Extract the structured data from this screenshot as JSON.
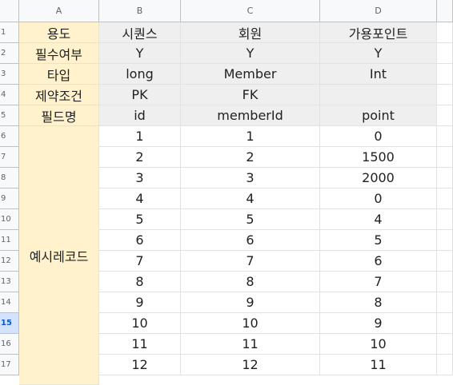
{
  "sheet": {
    "columns": [
      "A",
      "B",
      "C",
      "D"
    ],
    "rows": [
      "1",
      "2",
      "3",
      "4",
      "5",
      "6",
      "7",
      "8",
      "9",
      "10",
      "11",
      "12",
      "13",
      "14",
      "15",
      "16",
      "17"
    ],
    "active_row": "15",
    "header_rows": [
      {
        "label": "용도",
        "values": [
          "시퀀스",
          "회원",
          "가용포인트"
        ]
      },
      {
        "label": "필수여부",
        "values": [
          "Y",
          "Y",
          "Y"
        ]
      },
      {
        "label": "타입",
        "values": [
          "long",
          "Member",
          "Int"
        ]
      },
      {
        "label": "제약조건",
        "values": [
          "PK",
          "FK",
          ""
        ]
      },
      {
        "label": "필드명",
        "values": [
          "id",
          "memberId",
          "point"
        ]
      }
    ],
    "example_label": "예시레코드",
    "example_rows": [
      [
        "1",
        "1",
        "0"
      ],
      [
        "2",
        "2",
        "1500"
      ],
      [
        "3",
        "3",
        "2000"
      ],
      [
        "4",
        "4",
        "0"
      ],
      [
        "5",
        "5",
        "4"
      ],
      [
        "6",
        "6",
        "5"
      ],
      [
        "7",
        "7",
        "6"
      ],
      [
        "8",
        "8",
        "7"
      ],
      [
        "9",
        "9",
        "8"
      ],
      [
        "10",
        "10",
        "9"
      ],
      [
        "11",
        "11",
        "10"
      ],
      [
        "12",
        "12",
        "11"
      ]
    ],
    "colors": {
      "label_fill": "#fff2cc",
      "header_fill": "#efefef",
      "active_row_header": "#d3e3fd"
    }
  }
}
